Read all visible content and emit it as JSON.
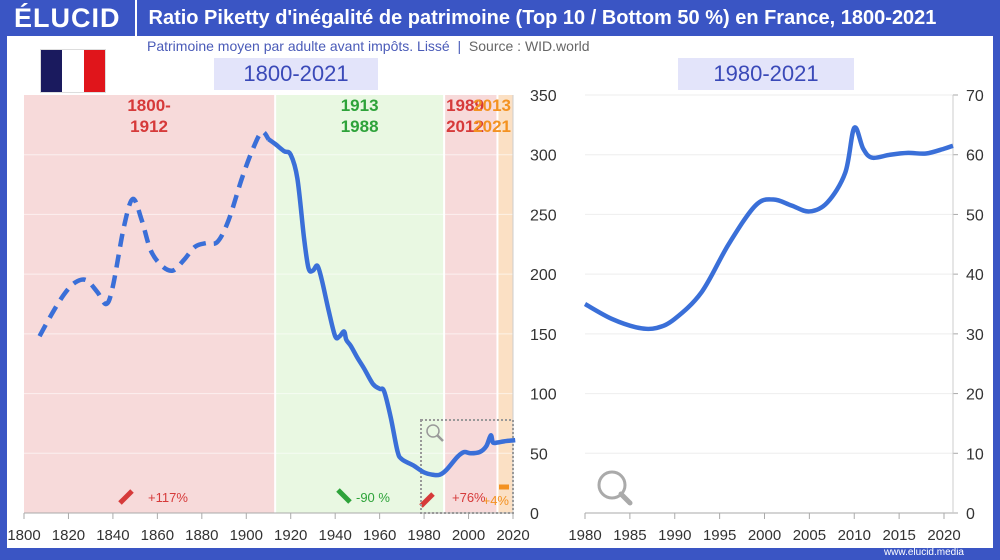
{
  "header": {
    "logo": "ÉLUCID",
    "title": "Ratio Piketty d'inégalité de patrimoine (Top 10 / Bottom 50 %) en France, 1800-2021"
  },
  "subtitle": {
    "text": "Patrimoine moyen par adulte avant impôts. Lissé",
    "source": "Source : WID.world"
  },
  "flag_colors": [
    "#1a1a5e",
    "#ffffff",
    "#e0151b"
  ],
  "footer": {
    "site": "www.elucid.media"
  },
  "colors": {
    "line": "#3a6fd8",
    "pink": "#f7dada",
    "green": "#e9f8e2",
    "orange": "#fbe0c4",
    "red": "#d63a3a",
    "greenText": "#2ea33a",
    "orangeText": "#f39221"
  },
  "chart_data": [
    {
      "type": "line",
      "title": "1800-2021",
      "xlim": [
        1800,
        2020
      ],
      "ylim": [
        0,
        350
      ],
      "xticks": [
        1800,
        1820,
        1840,
        1860,
        1880,
        1900,
        1920,
        1940,
        1960,
        1980,
        2000,
        2020
      ],
      "yticks": [
        0,
        50,
        100,
        150,
        200,
        250,
        300,
        350
      ],
      "y_axis": "right",
      "grid": true,
      "periods": [
        {
          "label": [
            "1800-",
            "1912"
          ],
          "start": 1800,
          "end": 1912,
          "change": "+117%",
          "trend": "up",
          "color": "pink"
        },
        {
          "label": [
            "1913",
            "1988"
          ],
          "start": 1913,
          "end": 1988,
          "change": "-90 %",
          "trend": "down",
          "color": "green"
        },
        {
          "label": [
            "1989",
            "2012"
          ],
          "start": 1989,
          "end": 2012,
          "change": "+76%",
          "trend": "up",
          "color": "pink"
        },
        {
          "label": [
            "2013",
            "2021"
          ],
          "start": 2013,
          "end": 2021,
          "change": "+4%",
          "trend": "flat",
          "color": "orange"
        }
      ],
      "series_dashed": {
        "x": [
          1807,
          1812,
          1818,
          1823,
          1828,
          1833,
          1837,
          1840,
          1845,
          1849,
          1853,
          1857,
          1862,
          1867,
          1872,
          1877,
          1882,
          1887,
          1892,
          1898,
          1903,
          1907,
          1910
        ],
        "y": [
          148,
          165,
          183,
          193,
          195,
          185,
          175,
          190,
          240,
          263,
          245,
          220,
          207,
          203,
          212,
          223,
          226,
          227,
          245,
          280,
          305,
          319,
          313
        ]
      },
      "series_solid": {
        "x": [
          1910,
          1913,
          1917,
          1920,
          1923,
          1926,
          1928,
          1930,
          1932,
          1934,
          1937,
          1940,
          1942,
          1944,
          1945,
          1947,
          1950,
          1953,
          1957,
          1960,
          1962,
          1965,
          1968,
          1970,
          1975,
          1980,
          1984,
          1987,
          1990,
          1995,
          1998,
          2001,
          2005,
          2008,
          2010,
          2011,
          2013,
          2016,
          2021
        ],
        "y": [
          313,
          309,
          303,
          300,
          280,
          230,
          205,
          203,
          207,
          195,
          170,
          148,
          148,
          152,
          145,
          140,
          130,
          121,
          108,
          104,
          102,
          80,
          52,
          45,
          40,
          34,
          32,
          32,
          36,
          47,
          51,
          50,
          51,
          56,
          65,
          59,
          59,
          60,
          61
        ]
      }
    },
    {
      "type": "line",
      "title": "1980-2021",
      "xlim": [
        1980,
        2021
      ],
      "ylim": [
        0,
        70
      ],
      "xticks": [
        1980,
        1985,
        1990,
        1995,
        2000,
        2005,
        2010,
        2015,
        2020
      ],
      "yticks": [
        0,
        10,
        20,
        30,
        40,
        50,
        60,
        70
      ],
      "y_axis": "right",
      "grid": true,
      "x": [
        1980,
        1983,
        1986,
        1988,
        1990,
        1993,
        1996,
        1999,
        2001,
        2003,
        2005,
        2007,
        2009,
        2010,
        2011,
        2012,
        2014,
        2016,
        2018,
        2020,
        2021
      ],
      "y": [
        35,
        32.5,
        31,
        31,
        32.5,
        37,
        45,
        51.5,
        52.5,
        51.5,
        50.5,
        52,
        57,
        64.5,
        61,
        59.5,
        60,
        60.3,
        60.2,
        61,
        61.5
      ]
    }
  ]
}
